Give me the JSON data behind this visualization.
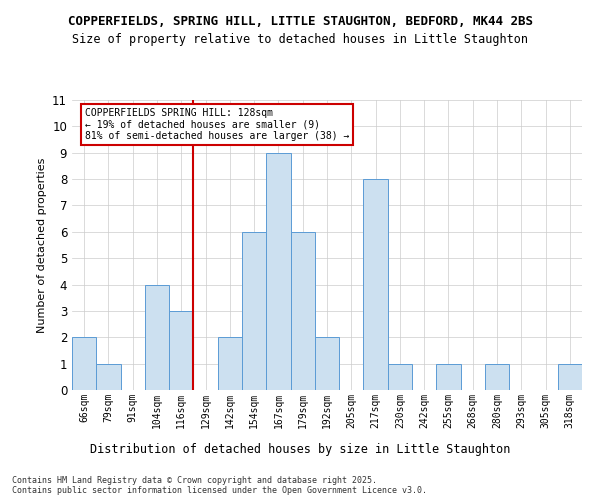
{
  "title_line1": "COPPERFIELDS, SPRING HILL, LITTLE STAUGHTON, BEDFORD, MK44 2BS",
  "title_line2": "Size of property relative to detached houses in Little Staughton",
  "xlabel": "Distribution of detached houses by size in Little Staughton",
  "ylabel": "Number of detached properties",
  "footnote": "Contains HM Land Registry data © Crown copyright and database right 2025.\nContains public sector information licensed under the Open Government Licence v3.0.",
  "categories": [
    "66sqm",
    "79sqm",
    "91sqm",
    "104sqm",
    "116sqm",
    "129sqm",
    "142sqm",
    "154sqm",
    "167sqm",
    "179sqm",
    "192sqm",
    "205sqm",
    "217sqm",
    "230sqm",
    "242sqm",
    "255sqm",
    "268sqm",
    "280sqm",
    "293sqm",
    "305sqm",
    "318sqm"
  ],
  "values": [
    2,
    1,
    0,
    4,
    3,
    0,
    2,
    6,
    9,
    6,
    2,
    0,
    8,
    1,
    0,
    1,
    0,
    1,
    0,
    0,
    1
  ],
  "bar_color": "#cce0f0",
  "bar_edge_color": "#5b9bd5",
  "highlight_line_color": "#cc0000",
  "annotation_text": "COPPERFIELDS SPRING HILL: 128sqm\n← 19% of detached houses are smaller (9)\n81% of semi-detached houses are larger (38) →",
  "annotation_box_edge_color": "#cc0000",
  "ylim": [
    0,
    11
  ],
  "yticks": [
    0,
    1,
    2,
    3,
    4,
    5,
    6,
    7,
    8,
    9,
    10,
    11
  ],
  "background_color": "#ffffff",
  "grid_color": "#cccccc"
}
